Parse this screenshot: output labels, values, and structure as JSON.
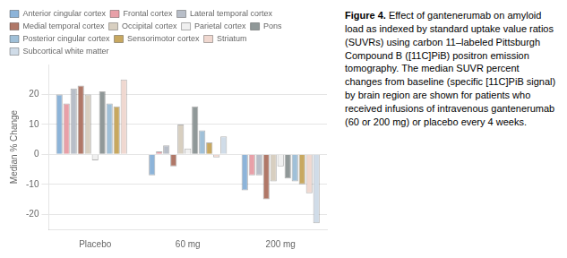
{
  "chart_data": {
    "type": "bar",
    "categories": [
      "Placebo",
      "60 mg",
      "200 mg"
    ],
    "series": [
      {
        "name": "Anterior cingular cortex",
        "color": "#8db4d9",
        "values": [
          20,
          -7,
          -12
        ]
      },
      {
        "name": "Frontal cortex",
        "color": "#e8a0a8",
        "values": [
          17,
          1,
          -7
        ]
      },
      {
        "name": "Lateral temporal cortex",
        "color": "#b8bec8",
        "values": [
          22,
          3,
          -7
        ]
      },
      {
        "name": "Medial temporal cortex",
        "color": "#b07868",
        "values": [
          23,
          -4,
          -15
        ]
      },
      {
        "name": "Occipital cortex",
        "color": "#d8cfc0",
        "values": [
          20,
          10,
          -9
        ]
      },
      {
        "name": "Parietal cortex",
        "color": "#f0f0f0",
        "values": [
          -2,
          2,
          -4
        ]
      },
      {
        "name": "Pons",
        "color": "#909898",
        "values": [
          21,
          16,
          -8
        ]
      },
      {
        "name": "Posterior cingular cortex",
        "color": "#a0c0d8",
        "values": [
          17,
          8,
          -9
        ]
      },
      {
        "name": "Sensorimotor cortex",
        "color": "#c8a860",
        "values": [
          16,
          4,
          -10
        ]
      },
      {
        "name": "Striatum",
        "color": "#f0d8d0",
        "values": [
          25,
          -1,
          -13
        ]
      },
      {
        "name": "Subcortical white matter",
        "color": "#d0dce8",
        "values": [
          0,
          6,
          -23
        ]
      }
    ],
    "ylabel": "Median % Change",
    "ylim": [
      -25,
      30
    ],
    "yticks": [
      -20,
      -10,
      0,
      10,
      20
    ],
    "grid": true,
    "legend": "top",
    "annotations": [
      "Figure 4.",
      "Effect of gantenerumab on amyloid load as indexed by standard uptake value ratios (SUVRs) using carbon 11–labeled Pittsburgh Compound B ([11C]PiB) positron emission tomography. The median SUVR percent changes from baseline (specific [11C]PiB signal) by brain region are shown for patients who received infusions of intravenous gantenerumab (60 or 200 mg) or placebo every 4 weeks."
    ]
  }
}
